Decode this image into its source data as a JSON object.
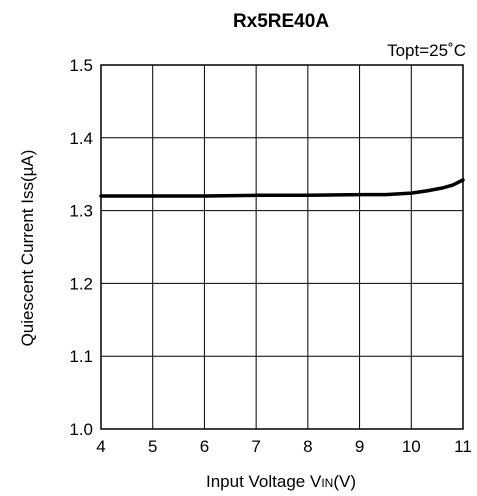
{
  "chart_data": {
    "type": "line",
    "title": "Rx5RE40A",
    "annotation": "Topt=25˚C",
    "xlabel_parts": [
      "Input Voltage V",
      "IN",
      "(V)"
    ],
    "ylabel": "Quiescent Current Iss(µA)",
    "xlim": [
      4,
      11
    ],
    "ylim": [
      1.0,
      1.5
    ],
    "x_ticks": [
      "4",
      "5",
      "6",
      "7",
      "8",
      "9",
      "10",
      "11"
    ],
    "y_ticks": [
      "1.0",
      "1.1",
      "1.2",
      "1.3",
      "1.4",
      "1.5"
    ],
    "grid": true,
    "series": [
      {
        "color": "#000000",
        "x": [
          4.0,
          5.0,
          6.0,
          7.0,
          8.0,
          9.0,
          9.5,
          10.0,
          10.3,
          10.6,
          10.8,
          11.0
        ],
        "y": [
          1.32,
          1.32,
          1.32,
          1.321,
          1.321,
          1.322,
          1.322,
          1.324,
          1.327,
          1.331,
          1.335,
          1.342
        ]
      }
    ]
  }
}
